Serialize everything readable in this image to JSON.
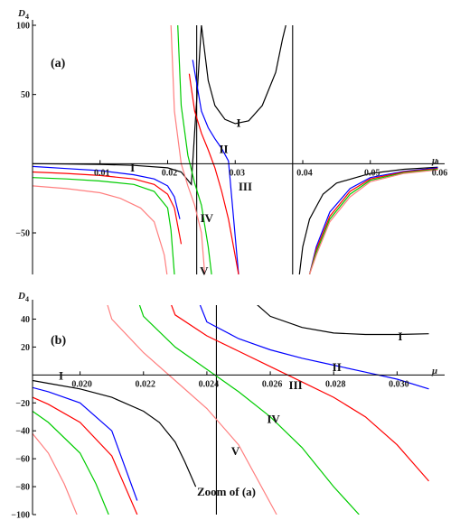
{
  "chart_data": [
    {
      "type": "line",
      "panel": "(a)",
      "ylabel_main": "D",
      "ylabel_sub": "4",
      "xlabel": "μ",
      "xlim": [
        0.0,
        0.061
      ],
      "ylim": [
        -80,
        100
      ],
      "xticks": [
        0.01,
        0.02,
        0.03,
        0.04,
        0.05,
        0.06
      ],
      "xtick_labels": [
        "0.01",
        "0.02",
        "0.03",
        "0.04",
        "0.05",
        "0.06"
      ],
      "yticks": [
        -50,
        50,
        100
      ],
      "ytick_labels": [
        "−50",
        "50",
        "100"
      ],
      "vlines": [
        0.0243,
        0.0385
      ],
      "series": [
        {
          "name": "I",
          "color": "#000000",
          "x": [
            0.0,
            0.005,
            0.01,
            0.015,
            0.02,
            0.022,
            0.0235,
            0.025,
            0.026,
            0.027,
            0.0285,
            0.03,
            0.032,
            0.034,
            0.036,
            0.037,
            0.0375,
            0.0395,
            0.04,
            0.041,
            0.043,
            0.045,
            0.05,
            0.055,
            0.06
          ],
          "y": [
            0,
            -0.2,
            -0.5,
            -1.2,
            -3,
            -6,
            -15,
            100,
            60,
            42,
            32,
            29,
            31,
            42,
            66,
            90,
            100,
            -80,
            -60,
            -40,
            -22,
            -14,
            -7,
            -4,
            -2.5
          ]
        },
        {
          "name": "II",
          "color": "#0000ff",
          "x": [
            0.0,
            0.005,
            0.01,
            0.015,
            0.018,
            0.02,
            0.021,
            0.0218,
            0.0237,
            0.025,
            0.026,
            0.027,
            0.028,
            0.029,
            0.0305,
            0.041,
            0.042,
            0.044,
            0.047,
            0.05,
            0.055,
            0.06
          ],
          "y": [
            -2,
            -3.5,
            -5,
            -8,
            -11,
            -16,
            -24,
            -40,
            75,
            38,
            26,
            18,
            11,
            2,
            -80,
            -80,
            -60,
            -35,
            -18,
            -10,
            -5.5,
            -3
          ]
        },
        {
          "name": "III",
          "color": "#ff0000",
          "x": [
            0.0,
            0.005,
            0.01,
            0.015,
            0.018,
            0.02,
            0.021,
            0.022,
            0.0232,
            0.024,
            0.025,
            0.026,
            0.027,
            0.028,
            0.029,
            0.0305,
            0.041,
            0.042,
            0.044,
            0.047,
            0.05,
            0.055,
            0.06
          ],
          "y": [
            -6,
            -7,
            -8.5,
            -11,
            -15,
            -22,
            -32,
            -58,
            65,
            38,
            22,
            10,
            -3,
            -20,
            -40,
            -80,
            -80,
            -62,
            -38,
            -20,
            -11,
            -6,
            -3.5
          ]
        },
        {
          "name": "IV",
          "color": "#00cc00",
          "x": [
            0.0,
            0.005,
            0.01,
            0.015,
            0.018,
            0.02,
            0.0205,
            0.021,
            0.0215,
            0.022,
            0.023,
            0.024,
            0.025,
            0.026,
            0.0265,
            0.041,
            0.042,
            0.044,
            0.047,
            0.05,
            0.055,
            0.06
          ],
          "y": [
            -10,
            -11,
            -12.5,
            -15,
            -20,
            -32,
            -48,
            -80,
            100,
            42,
            6,
            -14,
            -30,
            -60,
            -80,
            -80,
            -64,
            -40,
            -22,
            -12,
            -6.5,
            -4
          ]
        },
        {
          "name": "V",
          "color": "#ff7f7f",
          "x": [
            0.0,
            0.005,
            0.01,
            0.013,
            0.016,
            0.018,
            0.0195,
            0.0199,
            0.0205,
            0.021,
            0.022,
            0.023,
            0.024,
            0.025,
            0.0255,
            0.041,
            0.042,
            0.044,
            0.047,
            0.05,
            0.055,
            0.06
          ],
          "y": [
            -16,
            -18,
            -21,
            -25,
            -32,
            -42,
            -66,
            -80,
            100,
            38,
            0,
            -16,
            -30,
            -50,
            -80,
            -80,
            -66,
            -42,
            -24,
            -13,
            -7,
            -4.5
          ]
        }
      ],
      "labels": [
        {
          "text": "I",
          "x": 0.0305,
          "y": 30
        },
        {
          "text": "I",
          "x": 0.0148,
          "y": -2.5
        },
        {
          "text": "II",
          "x": 0.0283,
          "y": 11
        },
        {
          "text": "III",
          "x": 0.0315,
          "y": -16
        },
        {
          "text": "IV",
          "x": 0.0258,
          "y": -39
        },
        {
          "text": "V",
          "x": 0.0254,
          "y": -77
        }
      ]
    },
    {
      "type": "line",
      "panel": "(b)",
      "caption": "Zoom of (a)",
      "ylabel_main": "D",
      "ylabel_sub": "4",
      "xlabel": "μ",
      "xlim": [
        0.0185,
        0.0315
      ],
      "ylim": [
        -100,
        50
      ],
      "xticks": [
        0.02,
        0.022,
        0.024,
        0.026,
        0.028,
        0.03
      ],
      "xtick_labels": [
        "0.020",
        "0.022",
        "0.024",
        "0.026",
        "0.028",
        "0.030"
      ],
      "yticks": [
        -100,
        -80,
        -60,
        -40,
        -20,
        20,
        40
      ],
      "ytick_labels": [
        "−100",
        "−80",
        "−60",
        "−40",
        "−20",
        "20",
        "40"
      ],
      "vlines": [
        0.0243
      ],
      "series": [
        {
          "name": "I",
          "color": "#000000",
          "x": [
            0.0185,
            0.019,
            0.02,
            0.021,
            0.022,
            0.0225,
            0.023,
            0.0233,
            0.02365
          ],
          "y": [
            -4,
            -6,
            -10,
            -16,
            -26,
            -34,
            -48,
            -62,
            -80
          ],
          "x2": [
            0.0255,
            0.026,
            0.027,
            0.028,
            0.029,
            0.03,
            0.031
          ],
          "y2": [
            52,
            42,
            34,
            30,
            29,
            29,
            29.5
          ]
        },
        {
          "name": "II",
          "color": "#0000ff",
          "x": [
            0.0185,
            0.019,
            0.02,
            0.021,
            0.0218
          ],
          "y": [
            -9,
            -12,
            -20,
            -40,
            -90
          ],
          "x2": [
            0.0237,
            0.024,
            0.025,
            0.026,
            0.027,
            0.028,
            0.029,
            0.03,
            0.031
          ],
          "y2": [
            55,
            38,
            26,
            18,
            12,
            7,
            2,
            -3,
            -10
          ]
        },
        {
          "name": "III",
          "color": "#ff0000",
          "x": [
            0.0185,
            0.019,
            0.02,
            0.021,
            0.0218
          ],
          "y": [
            -16,
            -21,
            -34,
            -58,
            -100
          ],
          "x2": [
            0.0228,
            0.023,
            0.024,
            0.025,
            0.026,
            0.027,
            0.028,
            0.029,
            0.03,
            0.031
          ],
          "y2": [
            55,
            43,
            28,
            17,
            6,
            -5,
            -16,
            -30,
            -50,
            -76
          ]
        },
        {
          "name": "IV",
          "color": "#00cc00",
          "x": [
            0.0185,
            0.019,
            0.02,
            0.0205,
            0.0209
          ],
          "y": [
            -26,
            -34,
            -56,
            -78,
            -100
          ],
          "x2": [
            0.0218,
            0.022,
            0.023,
            0.024,
            0.025,
            0.026,
            0.027,
            0.028,
            0.0288
          ],
          "y2": [
            55,
            42,
            20,
            4,
            -12,
            -30,
            -52,
            -80,
            -100
          ]
        },
        {
          "name": "V",
          "color": "#ff7f7f",
          "x": [
            0.0185,
            0.019,
            0.0195,
            0.0199
          ],
          "y": [
            -42,
            -56,
            -78,
            -100
          ],
          "x2": [
            0.0208,
            0.021,
            0.022,
            0.023,
            0.024,
            0.025,
            0.0262
          ],
          "y2": [
            55,
            40,
            16,
            -4,
            -24,
            -50,
            -100
          ]
        }
      ],
      "labels": [
        {
          "text": "I",
          "x": 0.0301,
          "y": 28
        },
        {
          "text": "I",
          "x": 0.0194,
          "y": 0
        },
        {
          "text": "II",
          "x": 0.0281,
          "y": 6
        },
        {
          "text": "III",
          "x": 0.0268,
          "y": -7
        },
        {
          "text": "IV",
          "x": 0.0261,
          "y": -31
        },
        {
          "text": "V",
          "x": 0.0249,
          "y": -54
        }
      ]
    }
  ]
}
